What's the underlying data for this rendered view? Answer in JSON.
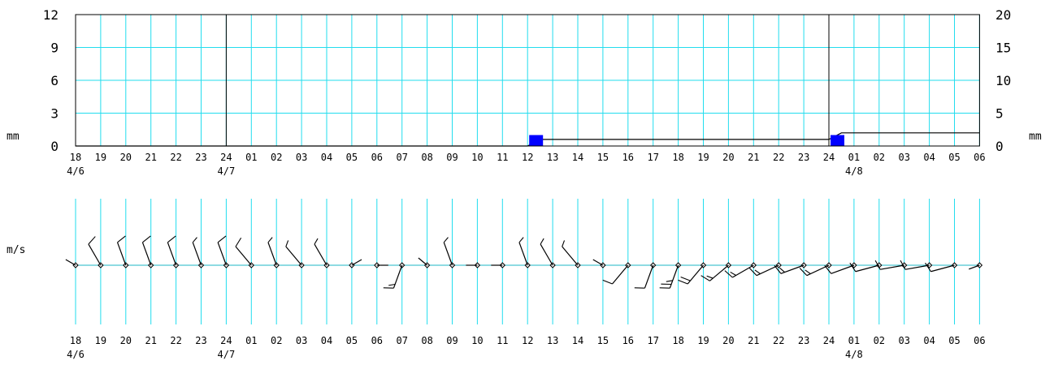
{
  "chart_data": [
    {
      "type": "bar",
      "title": "",
      "ylabel_left": "mm",
      "ylabel_right": "mm",
      "y_left_ticks": [
        "0",
        "3",
        "6",
        "9",
        "12"
      ],
      "y_right_ticks": [
        "0",
        "5",
        "10",
        "15",
        "20"
      ],
      "ylim_left": [
        0,
        12
      ],
      "ylim_right": [
        0,
        20
      ],
      "grid": true,
      "x_hour_labels": [
        "18",
        "19",
        "20",
        "21",
        "22",
        "23",
        "24",
        "01",
        "02",
        "03",
        "04",
        "05",
        "06",
        "07",
        "08",
        "09",
        "10",
        "11",
        "12",
        "13",
        "14",
        "15",
        "16",
        "17",
        "18",
        "19",
        "20",
        "21",
        "22",
        "23",
        "24",
        "01",
        "02",
        "03",
        "04",
        "05",
        "06"
      ],
      "x_date_labels": [
        {
          "tick_index": 0,
          "label": "4/6"
        },
        {
          "tick_index": 6,
          "label": "4/7"
        },
        {
          "tick_index": 31,
          "label": "4/8"
        }
      ],
      "day_separator_ticks": [
        6,
        30
      ],
      "series": [
        {
          "type": "bar",
          "color": "#0000ff",
          "axis": "left",
          "points": [
            {
              "tick_index": 18,
              "value": 1.0
            },
            {
              "tick_index": 30,
              "value": 1.0
            }
          ]
        },
        {
          "type": "cumulative-line",
          "color": "#000000",
          "axis": "right",
          "points": [
            {
              "tick": 0,
              "value": 0
            },
            {
              "tick": 18,
              "value": 0
            },
            {
              "tick": 18.5,
              "value": 1
            },
            {
              "tick": 30,
              "value": 1
            },
            {
              "tick": 30.5,
              "value": 2
            },
            {
              "tick": 36,
              "value": 2
            }
          ]
        }
      ]
    },
    {
      "type": "wind-barb",
      "title": "",
      "ylabel": "m/s",
      "grid": true,
      "x_hour_labels": [
        "18",
        "19",
        "20",
        "21",
        "22",
        "23",
        "24",
        "01",
        "02",
        "03",
        "04",
        "05",
        "06",
        "07",
        "08",
        "09",
        "10",
        "11",
        "12",
        "13",
        "14",
        "15",
        "16",
        "17",
        "18",
        "19",
        "20",
        "21",
        "22",
        "23",
        "24",
        "01",
        "02",
        "03",
        "04",
        "05",
        "06"
      ],
      "x_date_labels": [
        {
          "tick_index": 0,
          "label": "4/6"
        },
        {
          "tick_index": 6,
          "label": "4/7"
        },
        {
          "tick_index": 31,
          "label": "4/8"
        }
      ],
      "barbs": [
        {
          "tick": 0,
          "dir": 300,
          "speed": 0
        },
        {
          "tick": 1,
          "dir": 330,
          "speed": 12
        },
        {
          "tick": 2,
          "dir": 340,
          "speed": 12
        },
        {
          "tick": 3,
          "dir": 340,
          "speed": 10
        },
        {
          "tick": 4,
          "dir": 340,
          "speed": 10
        },
        {
          "tick": 5,
          "dir": 340,
          "speed": 5
        },
        {
          "tick": 6,
          "dir": 340,
          "speed": 10
        },
        {
          "tick": 7,
          "dir": 320,
          "speed": 10
        },
        {
          "tick": 8,
          "dir": 340,
          "speed": 8
        },
        {
          "tick": 9,
          "dir": 320,
          "speed": 8
        },
        {
          "tick": 10,
          "dir": 330,
          "speed": 8
        },
        {
          "tick": 11,
          "dir": 60,
          "speed": 0
        },
        {
          "tick": 12,
          "dir": 90,
          "speed": 0
        },
        {
          "tick": 13,
          "dir": 200,
          "speed": 15
        },
        {
          "tick": 14,
          "dir": 310,
          "speed": 0
        },
        {
          "tick": 15,
          "dir": 340,
          "speed": 5
        },
        {
          "tick": 16,
          "dir": 270,
          "speed": 0
        },
        {
          "tick": 17,
          "dir": 270,
          "speed": 0
        },
        {
          "tick": 18,
          "dir": 340,
          "speed": 5
        },
        {
          "tick": 19,
          "dir": 330,
          "speed": 5
        },
        {
          "tick": 20,
          "dir": 320,
          "speed": 5
        },
        {
          "tick": 21,
          "dir": 300,
          "speed": 0
        },
        {
          "tick": 22,
          "dir": 220,
          "speed": 12
        },
        {
          "tick": 23,
          "dir": 200,
          "speed": 12
        },
        {
          "tick": 24,
          "dir": 200,
          "speed": 25
        },
        {
          "tick": 25,
          "dir": 220,
          "speed": 20
        },
        {
          "tick": 26,
          "dir": 230,
          "speed": 15
        },
        {
          "tick": 27,
          "dir": 240,
          "speed": 15
        },
        {
          "tick": 28,
          "dir": 245,
          "speed": 15
        },
        {
          "tick": 29,
          "dir": 250,
          "speed": 15
        },
        {
          "tick": 30,
          "dir": 245,
          "speed": 15
        },
        {
          "tick": 31,
          "dir": 250,
          "speed": 12
        },
        {
          "tick": 32,
          "dir": 255,
          "speed": 12
        },
        {
          "tick": 33,
          "dir": 260,
          "speed": 12
        },
        {
          "tick": 34,
          "dir": 260,
          "speed": 12
        },
        {
          "tick": 35,
          "dir": 255,
          "speed": 12
        },
        {
          "tick": 36,
          "dir": 250,
          "speed": 0
        }
      ]
    }
  ]
}
